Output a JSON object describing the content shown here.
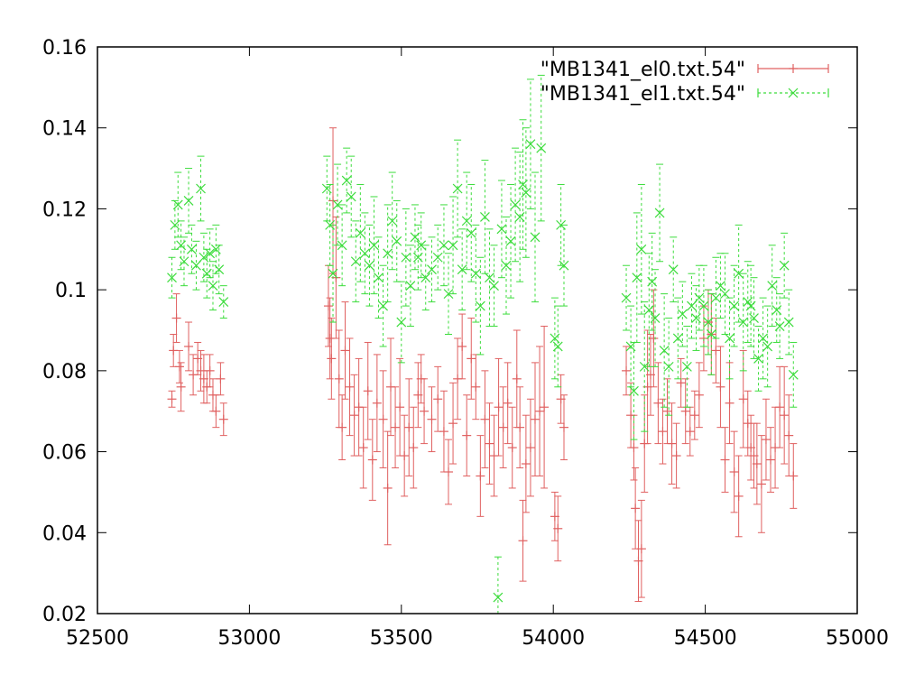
{
  "chart_data": {
    "type": "scatter",
    "title": "",
    "xlabel": "",
    "ylabel": "",
    "xlim": [
      52500,
      55000
    ],
    "ylim": [
      0.02,
      0.16
    ],
    "xticks": [
      "52500",
      "53000",
      "53500",
      "54000",
      "54500",
      "55000"
    ],
    "yticks": [
      "0.02",
      "0.04",
      "0.06",
      "0.08",
      "0.1",
      "0.12",
      "0.14",
      "0.16"
    ],
    "grid": false,
    "legend_position": "top-right",
    "series": [
      {
        "name": "\"MB1341_el0.txt.54\"",
        "color": "#e06060",
        "marker": "plus",
        "line": "solid",
        "points": [
          [
            52745,
            0.073,
            0.002
          ],
          [
            52750,
            0.085,
            0.004
          ],
          [
            52760,
            0.093,
            0.006
          ],
          [
            52770,
            0.081,
            0.004
          ],
          [
            52775,
            0.076,
            0.006
          ],
          [
            52800,
            0.086,
            0.006
          ],
          [
            52815,
            0.079,
            0.005
          ],
          [
            52830,
            0.083,
            0.004
          ],
          [
            52840,
            0.08,
            0.005
          ],
          [
            52850,
            0.078,
            0.006
          ],
          [
            52860,
            0.076,
            0.004
          ],
          [
            52870,
            0.08,
            0.004
          ],
          [
            52880,
            0.074,
            0.004
          ],
          [
            52890,
            0.07,
            0.004
          ],
          [
            52905,
            0.078,
            0.004
          ],
          [
            52915,
            0.068,
            0.004
          ],
          [
            53260,
            0.096,
            0.01
          ],
          [
            53265,
            0.088,
            0.01
          ],
          [
            53270,
            0.083,
            0.01
          ],
          [
            53275,
            0.122,
            0.018
          ],
          [
            53285,
            0.103,
            0.015
          ],
          [
            53295,
            0.078,
            0.012
          ],
          [
            53305,
            0.066,
            0.008
          ],
          [
            53315,
            0.085,
            0.012
          ],
          [
            53330,
            0.076,
            0.012
          ],
          [
            53345,
            0.069,
            0.01
          ],
          [
            53360,
            0.071,
            0.012
          ],
          [
            53375,
            0.061,
            0.01
          ],
          [
            53390,
            0.075,
            0.012
          ],
          [
            53405,
            0.058,
            0.01
          ],
          [
            53420,
            0.072,
            0.012
          ],
          [
            53440,
            0.068,
            0.012
          ],
          [
            53455,
            0.051,
            0.014
          ],
          [
            53465,
            0.076,
            0.012
          ],
          [
            53480,
            0.066,
            0.01
          ],
          [
            53495,
            0.071,
            0.012
          ],
          [
            53510,
            0.059,
            0.01
          ],
          [
            53525,
            0.066,
            0.012
          ],
          [
            53540,
            0.061,
            0.01
          ],
          [
            53555,
            0.074,
            0.008
          ],
          [
            53565,
            0.078,
            0.006
          ],
          [
            53575,
            0.07,
            0.008
          ],
          [
            53600,
            0.068,
            0.008
          ],
          [
            53620,
            0.073,
            0.008
          ],
          [
            53640,
            0.065,
            0.01
          ],
          [
            53655,
            0.055,
            0.008
          ],
          [
            53670,
            0.067,
            0.01
          ],
          [
            53685,
            0.078,
            0.01
          ],
          [
            53700,
            0.086,
            0.008
          ],
          [
            53715,
            0.064,
            0.01
          ],
          [
            53730,
            0.083,
            0.01
          ],
          [
            53745,
            0.076,
            0.008
          ],
          [
            53760,
            0.054,
            0.01
          ],
          [
            53775,
            0.068,
            0.012
          ],
          [
            53790,
            0.062,
            0.01
          ],
          [
            53805,
            0.059,
            0.01
          ],
          [
            53820,
            0.071,
            0.012
          ],
          [
            53835,
            0.066,
            0.01
          ],
          [
            53850,
            0.072,
            0.01
          ],
          [
            53865,
            0.061,
            0.01
          ],
          [
            53880,
            0.078,
            0.012
          ],
          [
            53890,
            0.066,
            0.01
          ],
          [
            53900,
            0.038,
            0.01
          ],
          [
            53910,
            0.057,
            0.012
          ],
          [
            53925,
            0.061,
            0.012
          ],
          [
            53940,
            0.068,
            0.014
          ],
          [
            53955,
            0.07,
            0.016
          ],
          [
            53970,
            0.071,
            0.02
          ],
          [
            54005,
            0.044,
            0.006
          ],
          [
            54015,
            0.041,
            0.008
          ],
          [
            54025,
            0.073,
            0.006
          ],
          [
            54035,
            0.066,
            0.008
          ],
          [
            54240,
            0.08,
            0.006
          ],
          [
            54255,
            0.069,
            0.008
          ],
          [
            54265,
            0.061,
            0.008
          ],
          [
            54270,
            0.046,
            0.01
          ],
          [
            54280,
            0.033,
            0.01
          ],
          [
            54290,
            0.036,
            0.012
          ],
          [
            54300,
            0.062,
            0.012
          ],
          [
            54310,
            0.076,
            0.014
          ],
          [
            54320,
            0.079,
            0.01
          ],
          [
            54330,
            0.088,
            0.012
          ],
          [
            54345,
            0.072,
            0.01
          ],
          [
            54360,
            0.065,
            0.008
          ],
          [
            54375,
            0.07,
            0.008
          ],
          [
            54390,
            0.062,
            0.01
          ],
          [
            54405,
            0.059,
            0.008
          ],
          [
            54420,
            0.077,
            0.006
          ],
          [
            54435,
            0.07,
            0.008
          ],
          [
            54450,
            0.065,
            0.006
          ],
          [
            54465,
            0.069,
            0.006
          ],
          [
            54480,
            0.074,
            0.008
          ],
          [
            54495,
            0.088,
            0.008
          ],
          [
            54510,
            0.092,
            0.008
          ],
          [
            54520,
            0.089,
            0.01
          ],
          [
            54535,
            0.085,
            0.008
          ],
          [
            54550,
            0.076,
            0.01
          ],
          [
            54565,
            0.058,
            0.008
          ],
          [
            54580,
            0.072,
            0.01
          ],
          [
            54595,
            0.055,
            0.01
          ],
          [
            54610,
            0.049,
            0.01
          ],
          [
            54625,
            0.073,
            0.012
          ],
          [
            54640,
            0.067,
            0.008
          ],
          [
            54650,
            0.061,
            0.008
          ],
          [
            54660,
            0.059,
            0.008
          ],
          [
            54670,
            0.057,
            0.01
          ],
          [
            54685,
            0.052,
            0.012
          ],
          [
            54700,
            0.063,
            0.01
          ],
          [
            54715,
            0.058,
            0.008
          ],
          [
            54730,
            0.061,
            0.01
          ],
          [
            54745,
            0.071,
            0.01
          ],
          [
            54760,
            0.069,
            0.012
          ],
          [
            54775,
            0.064,
            0.01
          ],
          [
            54790,
            0.054,
            0.008
          ]
        ]
      },
      {
        "name": "\"MB1341_el1.txt.54\"",
        "color": "#3cdc3c",
        "marker": "cross",
        "line": "dashed",
        "points": [
          [
            52745,
            0.103,
            0.005
          ],
          [
            52755,
            0.116,
            0.006
          ],
          [
            52765,
            0.121,
            0.008
          ],
          [
            52775,
            0.111,
            0.006
          ],
          [
            52785,
            0.107,
            0.006
          ],
          [
            52800,
            0.122,
            0.008
          ],
          [
            52810,
            0.11,
            0.006
          ],
          [
            52825,
            0.106,
            0.006
          ],
          [
            52840,
            0.125,
            0.008
          ],
          [
            52850,
            0.108,
            0.006
          ],
          [
            52860,
            0.104,
            0.006
          ],
          [
            52870,
            0.109,
            0.006
          ],
          [
            52880,
            0.101,
            0.006
          ],
          [
            52890,
            0.11,
            0.006
          ],
          [
            52900,
            0.105,
            0.006
          ],
          [
            52915,
            0.097,
            0.004
          ],
          [
            53255,
            0.125,
            0.008
          ],
          [
            53265,
            0.116,
            0.01
          ],
          [
            53275,
            0.104,
            0.012
          ],
          [
            53290,
            0.121,
            0.01
          ],
          [
            53305,
            0.111,
            0.01
          ],
          [
            53320,
            0.127,
            0.008
          ],
          [
            53335,
            0.123,
            0.01
          ],
          [
            53350,
            0.107,
            0.01
          ],
          [
            53365,
            0.114,
            0.012
          ],
          [
            53380,
            0.109,
            0.01
          ],
          [
            53395,
            0.106,
            0.01
          ],
          [
            53410,
            0.111,
            0.012
          ],
          [
            53425,
            0.103,
            0.01
          ],
          [
            53440,
            0.096,
            0.01
          ],
          [
            53455,
            0.109,
            0.012
          ],
          [
            53470,
            0.117,
            0.012
          ],
          [
            53485,
            0.112,
            0.01
          ],
          [
            53500,
            0.092,
            0.01
          ],
          [
            53515,
            0.108,
            0.012
          ],
          [
            53530,
            0.101,
            0.01
          ],
          [
            53545,
            0.113,
            0.008
          ],
          [
            53555,
            0.108,
            0.008
          ],
          [
            53565,
            0.111,
            0.008
          ],
          [
            53580,
            0.103,
            0.008
          ],
          [
            53600,
            0.105,
            0.008
          ],
          [
            53620,
            0.108,
            0.008
          ],
          [
            53640,
            0.111,
            0.01
          ],
          [
            53655,
            0.099,
            0.01
          ],
          [
            53670,
            0.111,
            0.012
          ],
          [
            53685,
            0.125,
            0.012
          ],
          [
            53700,
            0.105,
            0.01
          ],
          [
            53715,
            0.117,
            0.012
          ],
          [
            53730,
            0.114,
            0.012
          ],
          [
            53745,
            0.104,
            0.012
          ],
          [
            53760,
            0.096,
            0.012
          ],
          [
            53775,
            0.118,
            0.014
          ],
          [
            53790,
            0.103,
            0.012
          ],
          [
            53805,
            0.101,
            0.01
          ],
          [
            53818,
            0.024,
            0.01
          ],
          [
            53830,
            0.115,
            0.012
          ],
          [
            53845,
            0.106,
            0.012
          ],
          [
            53860,
            0.112,
            0.014
          ],
          [
            53875,
            0.121,
            0.014
          ],
          [
            53890,
            0.118,
            0.016
          ],
          [
            53900,
            0.126,
            0.016
          ],
          [
            53910,
            0.124,
            0.016
          ],
          [
            53925,
            0.136,
            0.016
          ],
          [
            53940,
            0.113,
            0.016
          ],
          [
            53960,
            0.135,
            0.018
          ],
          [
            54005,
            0.088,
            0.01
          ],
          [
            54015,
            0.086,
            0.01
          ],
          [
            54025,
            0.116,
            0.01
          ],
          [
            54035,
            0.106,
            0.01
          ],
          [
            54240,
            0.098,
            0.008
          ],
          [
            54255,
            0.086,
            0.01
          ],
          [
            54265,
            0.075,
            0.012
          ],
          [
            54275,
            0.103,
            0.016
          ],
          [
            54290,
            0.11,
            0.016
          ],
          [
            54300,
            0.081,
            0.016
          ],
          [
            54315,
            0.095,
            0.014
          ],
          [
            54325,
            0.102,
            0.012
          ],
          [
            54335,
            0.093,
            0.012
          ],
          [
            54350,
            0.119,
            0.012
          ],
          [
            54365,
            0.085,
            0.014
          ],
          [
            54380,
            0.081,
            0.012
          ],
          [
            54395,
            0.105,
            0.008
          ],
          [
            54410,
            0.088,
            0.01
          ],
          [
            54425,
            0.094,
            0.008
          ],
          [
            54440,
            0.081,
            0.01
          ],
          [
            54455,
            0.096,
            0.008
          ],
          [
            54470,
            0.093,
            0.008
          ],
          [
            54480,
            0.098,
            0.008
          ],
          [
            54495,
            0.096,
            0.01
          ],
          [
            54510,
            0.092,
            0.008
          ],
          [
            54520,
            0.089,
            0.01
          ],
          [
            54535,
            0.098,
            0.01
          ],
          [
            54550,
            0.101,
            0.008
          ],
          [
            54565,
            0.099,
            0.01
          ],
          [
            54580,
            0.088,
            0.01
          ],
          [
            54595,
            0.096,
            0.01
          ],
          [
            54610,
            0.104,
            0.012
          ],
          [
            54625,
            0.092,
            0.012
          ],
          [
            54640,
            0.097,
            0.01
          ],
          [
            54650,
            0.096,
            0.01
          ],
          [
            54660,
            0.093,
            0.01
          ],
          [
            54675,
            0.083,
            0.008
          ],
          [
            54690,
            0.088,
            0.01
          ],
          [
            54705,
            0.086,
            0.01
          ],
          [
            54720,
            0.101,
            0.01
          ],
          [
            54735,
            0.095,
            0.008
          ],
          [
            54745,
            0.091,
            0.008
          ],
          [
            54760,
            0.106,
            0.008
          ],
          [
            54775,
            0.092,
            0.008
          ],
          [
            54790,
            0.079,
            0.008
          ]
        ]
      }
    ]
  }
}
